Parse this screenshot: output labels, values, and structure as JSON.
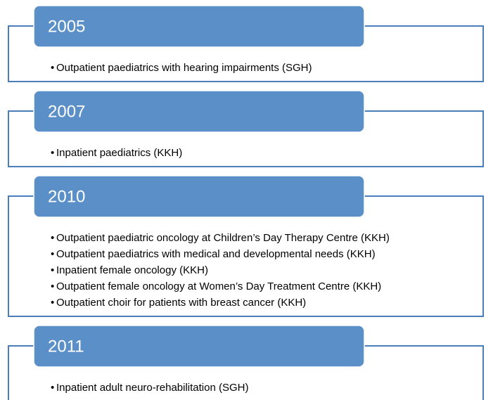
{
  "sections": [
    {
      "year": "2005",
      "items": [
        "Outpatient paediatrics with hearing impairments (SGH)"
      ]
    },
    {
      "year": "2007",
      "items": [
        "Inpatient paediatrics (KKH)"
      ]
    },
    {
      "year": "2010",
      "items": [
        "Outpatient paediatric oncology at Children’s Day Therapy Centre (KKH)",
        "Outpatient paediatrics with medical and developmental needs (KKH)",
        "Inpatient female oncology (KKH)",
        "Outpatient female oncology at Women’s Day Treatment Centre (KKH)",
        "Outpatient choir for patients with breast cancer (KKH)"
      ]
    },
    {
      "year": "2011",
      "items": [
        "Inpatient adult neuro-rehabilitation (SGH)"
      ]
    }
  ]
}
